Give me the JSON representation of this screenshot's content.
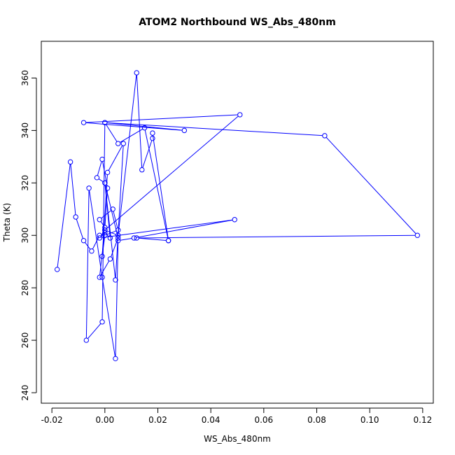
{
  "chart_data": {
    "type": "line",
    "title": "ATOM2 Northbound WS_Abs_480nm",
    "xlabel": "WS_Abs_480nm",
    "ylabel": "Theta (K)",
    "xlim": [
      -0.024,
      0.124
    ],
    "ylim": [
      236,
      374
    ],
    "xticks": [
      -0.02,
      0.0,
      0.02,
      0.04,
      0.06,
      0.08,
      0.1,
      0.12
    ],
    "xtick_labels": [
      "-0.02",
      "0.00",
      "0.02",
      "0.04",
      "0.06",
      "0.08",
      "0.10",
      "0.12"
    ],
    "yticks": [
      240,
      260,
      280,
      300,
      320,
      340,
      360
    ],
    "ytick_labels": [
      "240",
      "260",
      "280",
      "300",
      "320",
      "340",
      "360"
    ],
    "grid": false,
    "series": [
      {
        "color": "#0000ff",
        "marker": "open-circle",
        "x": [
          -0.018,
          -0.013,
          -0.011,
          -0.008,
          -0.005,
          -0.002,
          0.0,
          0.002,
          0.0,
          -0.003,
          -0.001,
          0.001,
          0.0,
          -0.002,
          0.003,
          0.005,
          0.0,
          -0.001,
          0.001,
          0.007,
          0.004,
          0.0,
          0.005,
          0.002,
          -0.002,
          0.0,
          0.005,
          0.012,
          0.014,
          0.018,
          0.018,
          0.024,
          0.015,
          0.005,
          0.0,
          -0.001,
          -0.007,
          -0.006,
          -0.001,
          0.004,
          0.005,
          0.011,
          0.049,
          -0.002,
          0.0,
          0.051,
          -0.008,
          0.03,
          0.0,
          0.083,
          0.118,
          0.012,
          0.024
        ],
        "y": [
          287,
          328,
          307,
          298,
          294,
          300,
          301,
          299,
          320,
          322,
          329,
          318,
          303,
          306,
          310,
          302,
          300,
          292,
          324,
          335,
          283,
          320,
          299,
          291,
          284,
          302,
          300,
          362,
          325,
          337,
          339,
          298,
          341,
          335,
          343,
          267,
          260,
          318,
          284,
          253,
          298,
          299,
          306,
          299,
          302,
          346,
          343,
          340,
          343,
          338,
          300,
          299,
          298
        ]
      }
    ]
  }
}
